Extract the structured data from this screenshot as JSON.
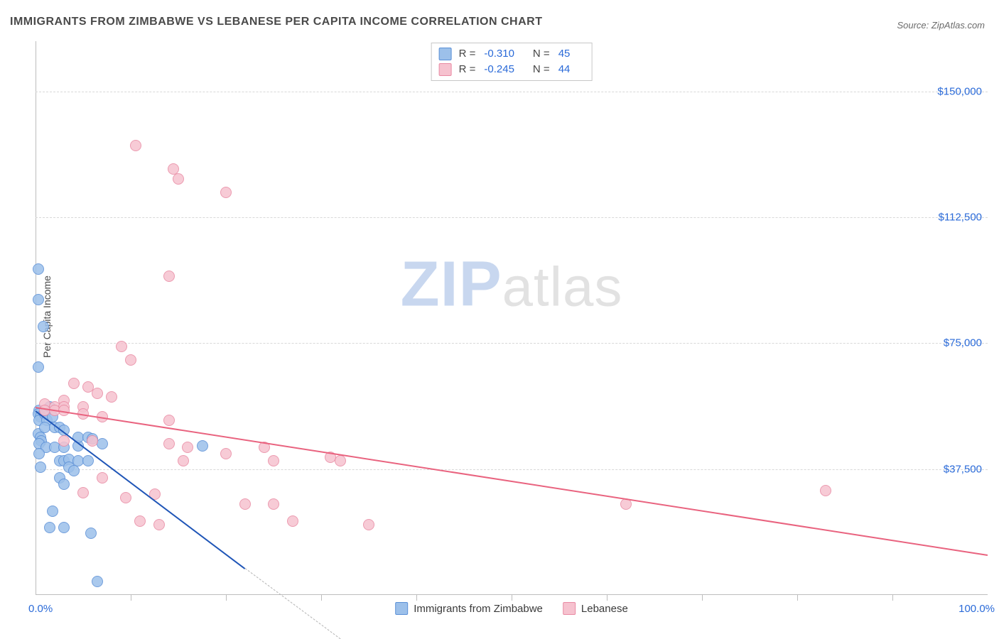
{
  "title": "IMMIGRANTS FROM ZIMBABWE VS LEBANESE PER CAPITA INCOME CORRELATION CHART",
  "source": "Source: ZipAtlas.com",
  "ylabel": "Per Capita Income",
  "watermark": {
    "prefix": "ZIP",
    "suffix": "atlas"
  },
  "chart": {
    "type": "scatter",
    "xlim": [
      0,
      100
    ],
    "ylim": [
      0,
      165000
    ],
    "x_tick_step": 10,
    "x_min_label": "0.0%",
    "x_max_label": "100.0%",
    "y_ticks": [
      37500,
      75000,
      112500,
      150000
    ],
    "y_tick_labels": [
      "$37,500",
      "$75,000",
      "$112,500",
      "$150,000"
    ],
    "grid_color": "#d8d8d8",
    "axis_color": "#bdbdbd",
    "background_color": "#ffffff",
    "label_color": "#2a6ad8",
    "marker_radius": 8,
    "marker_fill_opacity": 0.35,
    "marker_stroke_width": 1.2,
    "series": [
      {
        "name": "Immigrants from Zimbabwe",
        "fill_color": "#9cc0ea",
        "stroke_color": "#5a8fd6",
        "r_value": "-0.310",
        "n_value": "45",
        "regression": {
          "x1": 0,
          "y1": 55000,
          "x2": 22,
          "y2": 8000,
          "line_color": "#1f55b7",
          "line_width": 2.5,
          "solid": true,
          "extend_x2": 32,
          "extend_y2": -13000,
          "dash_color": "#b6b6b6"
        },
        "points": [
          [
            0.3,
            97000
          ],
          [
            0.3,
            88000
          ],
          [
            0.8,
            80000
          ],
          [
            0.3,
            68000
          ],
          [
            0.4,
            55000
          ],
          [
            0.3,
            54000
          ],
          [
            0.5,
            53000
          ],
          [
            0.4,
            52000
          ],
          [
            1.0,
            54000
          ],
          [
            1.2,
            52000
          ],
          [
            1.5,
            56000
          ],
          [
            1.8,
            53000
          ],
          [
            0.3,
            48000
          ],
          [
            0.5,
            47000
          ],
          [
            0.6,
            46000
          ],
          [
            0.4,
            45000
          ],
          [
            1.0,
            50000
          ],
          [
            2.0,
            50000
          ],
          [
            2.5,
            50000
          ],
          [
            3.0,
            49000
          ],
          [
            1.1,
            44000
          ],
          [
            2.0,
            44000
          ],
          [
            3.0,
            44000
          ],
          [
            4.5,
            44500
          ],
          [
            4.5,
            47000
          ],
          [
            5.5,
            47000
          ],
          [
            6.0,
            46500
          ],
          [
            7.0,
            45000
          ],
          [
            2.5,
            40000
          ],
          [
            3.0,
            40000
          ],
          [
            3.5,
            40500
          ],
          [
            4.5,
            40000
          ],
          [
            5.5,
            40000
          ],
          [
            3.5,
            38000
          ],
          [
            4.0,
            37000
          ],
          [
            2.5,
            35000
          ],
          [
            3.0,
            33000
          ],
          [
            17.5,
            44500
          ],
          [
            1.8,
            25000
          ],
          [
            1.5,
            20000
          ],
          [
            3.0,
            20000
          ],
          [
            5.8,
            18500
          ],
          [
            6.5,
            4000
          ],
          [
            0.4,
            42000
          ],
          [
            0.5,
            38000
          ]
        ]
      },
      {
        "name": "Lebanese",
        "fill_color": "#f6c2cf",
        "stroke_color": "#e98aa3",
        "r_value": "-0.245",
        "n_value": "44",
        "regression": {
          "x1": 0,
          "y1": 56000,
          "x2": 100,
          "y2": 12000,
          "line_color": "#e9637f",
          "line_width": 2.2,
          "solid": true
        },
        "points": [
          [
            10.5,
            134000
          ],
          [
            14.5,
            127000
          ],
          [
            15.0,
            124000
          ],
          [
            20.0,
            120000
          ],
          [
            14.0,
            95000
          ],
          [
            9.0,
            74000
          ],
          [
            10.0,
            70000
          ],
          [
            4.0,
            63000
          ],
          [
            5.5,
            62000
          ],
          [
            6.5,
            60000
          ],
          [
            8.0,
            59000
          ],
          [
            3.0,
            58000
          ],
          [
            1.0,
            57000
          ],
          [
            2.0,
            56000
          ],
          [
            3.0,
            56000
          ],
          [
            5.0,
            56000
          ],
          [
            1.0,
            55000
          ],
          [
            2.0,
            55000
          ],
          [
            3.0,
            55000
          ],
          [
            5.0,
            54000
          ],
          [
            7.0,
            53000
          ],
          [
            14.0,
            52000
          ],
          [
            3.0,
            46000
          ],
          [
            6.0,
            46000
          ],
          [
            14.0,
            45000
          ],
          [
            16.0,
            44000
          ],
          [
            20.0,
            42000
          ],
          [
            15.5,
            40000
          ],
          [
            24.0,
            44000
          ],
          [
            25.0,
            40000
          ],
          [
            31.0,
            41000
          ],
          [
            32.0,
            40000
          ],
          [
            5.0,
            30500
          ],
          [
            9.5,
            29000
          ],
          [
            12.5,
            30000
          ],
          [
            11.0,
            22000
          ],
          [
            13.0,
            21000
          ],
          [
            22.0,
            27000
          ],
          [
            25.0,
            27000
          ],
          [
            27.0,
            22000
          ],
          [
            35.0,
            21000
          ],
          [
            62.0,
            27000
          ],
          [
            83.0,
            31000
          ],
          [
            7.0,
            35000
          ]
        ]
      }
    ]
  },
  "legend_top": {
    "r_label": "R =",
    "n_label": "N ="
  },
  "legend_bottom": {
    "series1": "Immigrants from Zimbabwe",
    "series2": "Lebanese"
  }
}
